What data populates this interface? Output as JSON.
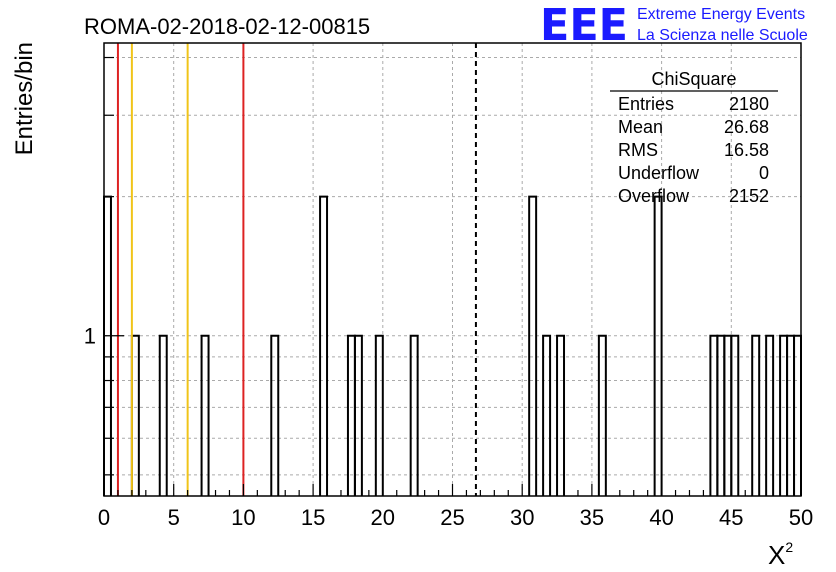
{
  "chart_data": {
    "type": "histogram",
    "title": "ROMA-02-2018-02-12-00815",
    "xlabel": "X",
    "xlabel_sup": "2",
    "ylabel": "Entries/bin",
    "xlim": [
      0,
      50
    ],
    "ylim": [
      0.45,
      4.3
    ],
    "ylog": true,
    "grid": true,
    "bin_width": 0.5,
    "x_ticks": [
      "0",
      "5",
      "10",
      "15",
      "20",
      "25",
      "30",
      "35",
      "40",
      "45",
      "50"
    ],
    "y_ticks": [
      "1"
    ],
    "bins": [
      {
        "x": 0.0,
        "y": 2
      },
      {
        "x": 2.0,
        "y": 1
      },
      {
        "x": 4.0,
        "y": 1
      },
      {
        "x": 7.0,
        "y": 1
      },
      {
        "x": 12.0,
        "y": 1
      },
      {
        "x": 15.5,
        "y": 2
      },
      {
        "x": 17.5,
        "y": 1
      },
      {
        "x": 18.0,
        "y": 1
      },
      {
        "x": 19.5,
        "y": 1
      },
      {
        "x": 22.0,
        "y": 1
      },
      {
        "x": 30.5,
        "y": 2
      },
      {
        "x": 31.5,
        "y": 1
      },
      {
        "x": 32.5,
        "y": 1
      },
      {
        "x": 35.5,
        "y": 1
      },
      {
        "x": 39.5,
        "y": 2
      },
      {
        "x": 43.5,
        "y": 1
      },
      {
        "x": 44.0,
        "y": 1
      },
      {
        "x": 44.5,
        "y": 1
      },
      {
        "x": 45.0,
        "y": 1
      },
      {
        "x": 46.5,
        "y": 1
      },
      {
        "x": 47.5,
        "y": 1
      },
      {
        "x": 48.5,
        "y": 1
      },
      {
        "x": 49.0,
        "y": 1
      },
      {
        "x": 49.5,
        "y": 1
      }
    ],
    "vertical_lines": [
      {
        "x": 1,
        "color": "#dd2222",
        "style": "solid"
      },
      {
        "x": 2,
        "color": "#f0c419",
        "style": "solid"
      },
      {
        "x": 6,
        "color": "#f0c419",
        "style": "solid"
      },
      {
        "x": 10,
        "color": "#dd2222",
        "style": "solid"
      },
      {
        "x": 26.68,
        "color": "#000000",
        "style": "dashed"
      }
    ],
    "stats": {
      "title": "ChiSquare",
      "rows": [
        {
          "label": "Entries",
          "value": "2180"
        },
        {
          "label": "Mean",
          "value": "26.68"
        },
        {
          "label": "RMS",
          "value": "16.58"
        },
        {
          "label": "Underflow",
          "value": "0"
        },
        {
          "label": "Overflow",
          "value": "2152"
        }
      ]
    }
  },
  "logo": {
    "mark": "EEE",
    "line1": "Extreme Energy Events",
    "line2": "La Scienza nelle Scuole",
    "color": "#1a1aff"
  }
}
